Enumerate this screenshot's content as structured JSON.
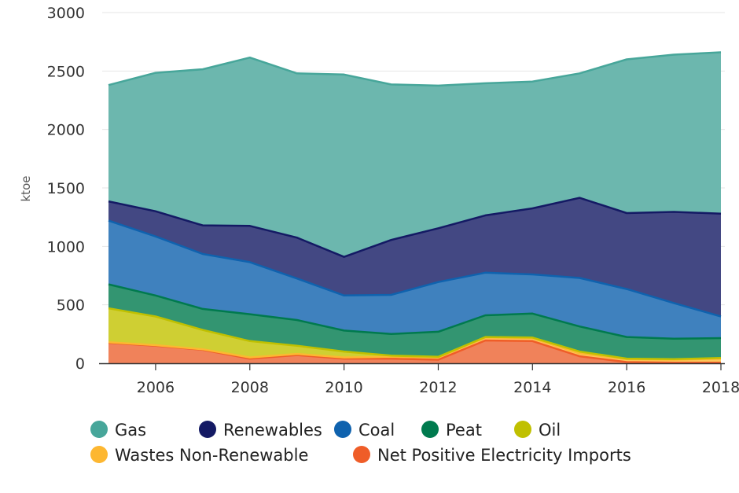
{
  "chart_data": {
    "type": "area",
    "stacked": true,
    "ylabel": "ktoe",
    "xlabel": "",
    "title": "",
    "x": [
      2005,
      2006,
      2007,
      2008,
      2009,
      2010,
      2011,
      2012,
      2013,
      2014,
      2015,
      2016,
      2017,
      2018
    ],
    "xticks": [
      "2006",
      "2008",
      "2010",
      "2012",
      "2014",
      "2016",
      "2018"
    ],
    "xtick_values": [
      2006,
      2008,
      2010,
      2012,
      2014,
      2016,
      2018
    ],
    "yticks": [
      "0",
      "500",
      "1000",
      "1500",
      "2000",
      "2500",
      "3000"
    ],
    "ytick_values": [
      0,
      500,
      1000,
      1500,
      2000,
      2500,
      3000
    ],
    "ylim": [
      0,
      3000
    ],
    "xlim": [
      2005,
      2018
    ],
    "grid": true,
    "legend_position": "bottom",
    "series": [
      {
        "name": "Net Positive Electricity Imports",
        "color": "#ef5d28",
        "fill": "#f0825a",
        "values": [
          175,
          150,
          115,
          40,
          70,
          40,
          40,
          30,
          195,
          190,
          60,
          10,
          5,
          5
        ]
      },
      {
        "name": "Wastes Non-Renewable",
        "color": "#fdb731",
        "fill": "#fdc65b",
        "values": [
          5,
          5,
          5,
          10,
          10,
          10,
          15,
          20,
          25,
          25,
          25,
          25,
          25,
          35
        ]
      },
      {
        "name": "Oil",
        "color": "#c0c000",
        "fill": "#cfcf33",
        "values": [
          290,
          245,
          165,
          140,
          70,
          50,
          10,
          5,
          5,
          5,
          15,
          5,
          5,
          5
        ]
      },
      {
        "name": "Peat",
        "color": "#007a4e",
        "fill": "#339571",
        "values": [
          205,
          180,
          180,
          230,
          220,
          180,
          185,
          215,
          185,
          205,
          215,
          185,
          175,
          170
        ]
      },
      {
        "name": "Coal",
        "color": "#0f62ae",
        "fill": "#3f81be",
        "values": [
          545,
          505,
          470,
          445,
          355,
          300,
          335,
          425,
          365,
          335,
          415,
          410,
          305,
          185
        ]
      },
      {
        "name": "Renewables",
        "color": "#141a64",
        "fill": "#434883",
        "values": [
          165,
          215,
          245,
          310,
          350,
          330,
          470,
          460,
          490,
          565,
          685,
          650,
          780,
          880
        ]
      },
      {
        "name": "Gas",
        "color": "#47a69a",
        "fill": "#6cb7ae",
        "values": [
          995,
          1185,
          1335,
          1440,
          1405,
          1560,
          1330,
          1220,
          1130,
          1085,
          1065,
          1315,
          1345,
          1380
        ]
      }
    ],
    "legend_rows": [
      [
        "Gas",
        "Renewables",
        "Coal",
        "Peat",
        "Oil"
      ],
      [
        "Wastes Non-Renewable",
        "Net Positive Electricity Imports"
      ]
    ]
  }
}
